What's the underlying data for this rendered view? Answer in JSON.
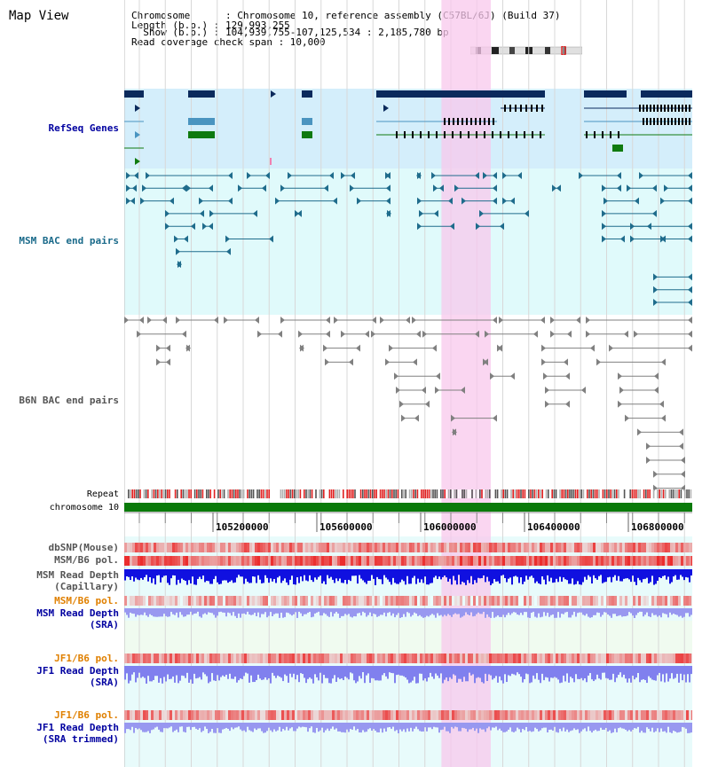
{
  "header": {
    "title": "Map View",
    "info_lines": [
      "Chromosome      : Chromosome 10, reference assembly (C57BL/6J) (Build 37)",
      "Length (b.p.) : 129,993,255",
      "  Show (b.p.) : 104,939,755-107,125,534 : 2,185,780 bp",
      "Read coverage check span : 10,000"
    ]
  },
  "tracks": {
    "refseq": "RefSeq Genes",
    "msm_bac": "MSM BAC end pairs",
    "b6n_bac": "B6N BAC end pairs",
    "repeat": "Repeat",
    "chromosome": "chromosome 10",
    "dbsnp": "dbSNP(Mouse)",
    "msm_b6_pol": "MSM/B6 pol.",
    "msm_depth_cap_1": "MSM Read Depth",
    "msm_depth_cap_2": "(Capillary)",
    "msm_b6_pol_2": "MSM/B6 pol.",
    "msm_depth_sra_1": "MSM Read Depth",
    "msm_depth_sra_2": "(SRA)",
    "jf1_b6_pol": "JF1/B6 pol.",
    "jf1_depth_sra_1": "JF1 Read Depth",
    "jf1_depth_sra_2": "(SRA)",
    "jf1_b6_pol_2": "JF1/B6 pol.",
    "jf1_depth_trim_1": "JF1 Read Depth",
    "jf1_depth_trim_2": "(SRA trimmed)"
  },
  "axis": {
    "ticks": [
      "105200000",
      "105600000",
      "106000000",
      "106400000",
      "106800000"
    ],
    "tick_values": [
      105200000,
      105600000,
      106000000,
      106400000,
      106800000
    ],
    "start": 104939755,
    "end": 107125534
  },
  "highlight": {
    "start_bp": 106080000,
    "end_bp": 106270000
  },
  "colors": {
    "refseq_bg": "#d4eefb",
    "bac_bg": "#e0fafb",
    "highlight": "#f8c8ec",
    "gene_navy": "#0b2a5c",
    "gene_blue": "#4a94c0",
    "gene_green": "#0f7a0f",
    "msm_bac": "#1f6c8c",
    "b6n_bac": "#808080",
    "chrom_green": "#0a7a0a",
    "depth_cap": "#1010e0",
    "depth_sra": "#9898f0",
    "pol_red": "#e83030",
    "label_blue": "#0000a0",
    "label_orange": "#e08000",
    "label_teal": "#1a6a8a"
  }
}
